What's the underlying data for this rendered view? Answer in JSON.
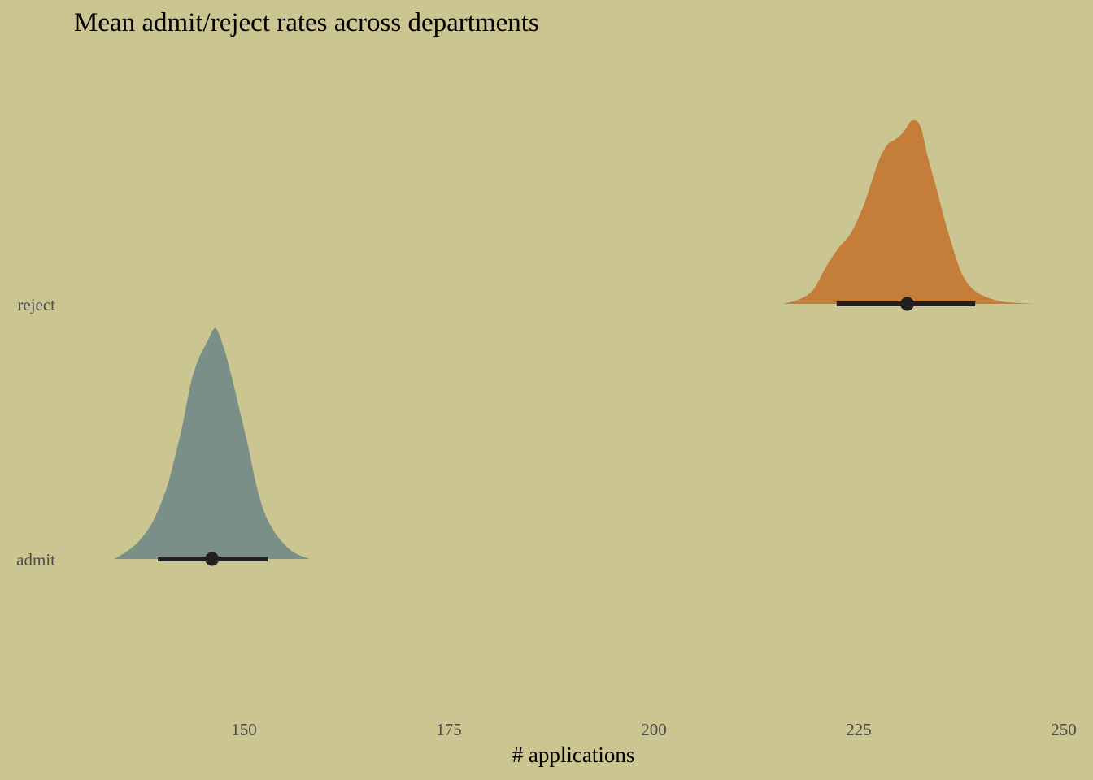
{
  "chart_data": {
    "type": "area",
    "title": "Mean admit/reject rates across departments",
    "xlabel": "# applications",
    "ylabel": "",
    "xlim": [
      129.5,
      250
    ],
    "x_ticks": [
      150,
      175,
      200,
      225,
      250
    ],
    "grid": false,
    "legend": "none",
    "series": [
      {
        "name": "reject",
        "color": "#c47e3a",
        "point_estimate": 230.9,
        "interval": [
          222.3,
          239.2
        ],
        "density": [
          [
            215.8,
            0.0
          ],
          [
            218.0,
            0.03
          ],
          [
            219.5,
            0.08
          ],
          [
            221.0,
            0.2
          ],
          [
            222.5,
            0.3
          ],
          [
            224.0,
            0.38
          ],
          [
            225.5,
            0.52
          ],
          [
            226.5,
            0.65
          ],
          [
            227.5,
            0.78
          ],
          [
            228.5,
            0.86
          ],
          [
            229.5,
            0.89
          ],
          [
            230.5,
            0.93
          ],
          [
            231.5,
            0.99
          ],
          [
            232.5,
            0.96
          ],
          [
            233.5,
            0.78
          ],
          [
            234.5,
            0.62
          ],
          [
            235.5,
            0.45
          ],
          [
            236.5,
            0.3
          ],
          [
            237.5,
            0.17
          ],
          [
            238.5,
            0.1
          ],
          [
            239.5,
            0.06
          ],
          [
            241.0,
            0.03
          ],
          [
            243.0,
            0.01
          ],
          [
            246.5,
            0.0
          ]
        ]
      },
      {
        "name": "admit",
        "color": "#7a8f87",
        "point_estimate": 146.1,
        "interval": [
          139.5,
          152.9
        ],
        "density": [
          [
            134.2,
            0.0
          ],
          [
            136.0,
            0.04
          ],
          [
            137.5,
            0.09
          ],
          [
            139.0,
            0.17
          ],
          [
            140.5,
            0.3
          ],
          [
            141.5,
            0.43
          ],
          [
            142.5,
            0.58
          ],
          [
            143.5,
            0.76
          ],
          [
            144.5,
            0.87
          ],
          [
            145.5,
            0.94
          ],
          [
            146.5,
            1.0
          ],
          [
            147.5,
            0.92
          ],
          [
            148.5,
            0.79
          ],
          [
            149.5,
            0.64
          ],
          [
            150.5,
            0.49
          ],
          [
            151.5,
            0.32
          ],
          [
            152.5,
            0.2
          ],
          [
            153.5,
            0.13
          ],
          [
            154.5,
            0.08
          ],
          [
            156.0,
            0.03
          ],
          [
            158.0,
            0.0
          ]
        ]
      }
    ]
  }
}
